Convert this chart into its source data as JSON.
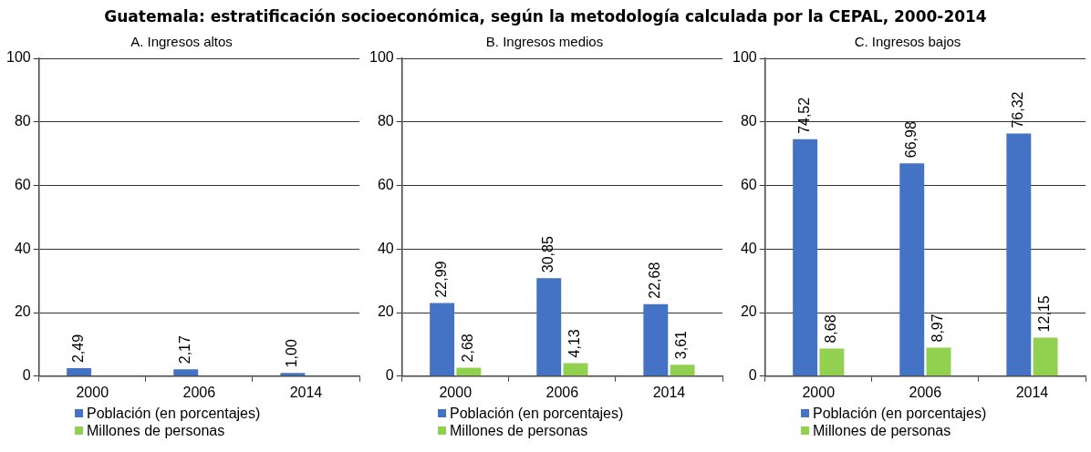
{
  "chart_data": [
    {
      "type": "bar",
      "title": "Guatemala: estratificación socioeconómica, según la metodología calculada por la CEPAL, 2000-2014",
      "subtitle": "A. Ingresos altos",
      "categories": [
        "2000",
        "2006",
        "2014"
      ],
      "series": [
        {
          "name": "Población (en porcentajes)",
          "color": "#4472c4",
          "values": [
            2.49,
            2.17,
            1.0
          ],
          "value_labels": [
            "2,49",
            "2,17",
            "1,00"
          ]
        },
        {
          "name": "Millones de personas",
          "color": "#92d050",
          "values": [
            null,
            null,
            null
          ],
          "value_labels": [
            null,
            null,
            null
          ]
        }
      ],
      "ylim": [
        0,
        100
      ],
      "yticks": [
        0,
        20,
        40,
        60,
        80,
        100
      ],
      "grid": "y",
      "legend": "bottom"
    },
    {
      "type": "bar",
      "subtitle": "B. Ingresos medios",
      "categories": [
        "2000",
        "2006",
        "2014"
      ],
      "series": [
        {
          "name": "Población (en porcentajes)",
          "color": "#4472c4",
          "values": [
            22.99,
            30.85,
            22.68
          ],
          "value_labels": [
            "22,99",
            "30,85",
            "22,68"
          ]
        },
        {
          "name": "Millones de personas",
          "color": "#92d050",
          "values": [
            2.68,
            4.13,
            3.61
          ],
          "value_labels": [
            "2,68",
            "4,13",
            "3,61"
          ]
        }
      ],
      "ylim": [
        0,
        100
      ],
      "yticks": [
        0,
        20,
        40,
        60,
        80,
        100
      ],
      "grid": "y",
      "legend": "bottom"
    },
    {
      "type": "bar",
      "subtitle": "C. Ingresos bajos",
      "categories": [
        "2000",
        "2006",
        "2014"
      ],
      "series": [
        {
          "name": "Población (en porcentajes)",
          "color": "#4472c4",
          "values": [
            74.52,
            66.98,
            76.32
          ],
          "value_labels": [
            "74,52",
            "66,98",
            "76,32"
          ]
        },
        {
          "name": "Millones de personas",
          "color": "#92d050",
          "values": [
            8.68,
            8.97,
            12.15
          ],
          "value_labels": [
            "8,68",
            "8,97",
            "12,15"
          ]
        }
      ],
      "ylim": [
        0,
        100
      ],
      "yticks": [
        0,
        20,
        40,
        60,
        80,
        100
      ],
      "grid": "y",
      "legend": "bottom"
    }
  ]
}
